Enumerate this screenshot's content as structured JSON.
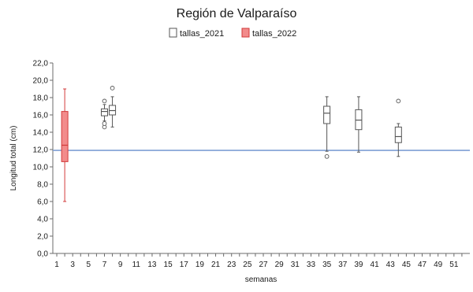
{
  "chart_data": {
    "type": "boxplot",
    "title": "Región de Valparaíso",
    "xlabel": "semanas",
    "ylabel": "Longitud total (cm)",
    "ylim": [
      0,
      22
    ],
    "xlim": [
      1,
      52
    ],
    "y_ticks": [
      "0,0",
      "2,0",
      "4,0",
      "6,0",
      "8,0",
      "10,0",
      "12,0",
      "14,0",
      "16,0",
      "18,0",
      "20,0",
      "22,0"
    ],
    "x_ticks": [
      "1",
      "3",
      "5",
      "7",
      "9",
      "11",
      "13",
      "15",
      "17",
      "19",
      "21",
      "23",
      "25",
      "27",
      "29",
      "31",
      "33",
      "35",
      "37",
      "39",
      "41",
      "43",
      "45",
      "47",
      "49",
      "51"
    ],
    "reference_line": {
      "y": 11.9,
      "color": "#7f9fd4"
    },
    "legend_position": "top-center",
    "series": [
      {
        "name": "tallas_2021",
        "color": "#ffffff",
        "stroke": "#555555",
        "boxes": [
          {
            "week": 7,
            "min": 15.3,
            "q1": 15.9,
            "median": 16.4,
            "q3": 16.7,
            "max": 17.2,
            "outliers": [
              14.6,
              15.0,
              17.6
            ]
          },
          {
            "week": 8,
            "min": 14.6,
            "q1": 16.0,
            "median": 16.5,
            "q3": 17.1,
            "max": 18.1,
            "outliers": [
              19.1
            ]
          },
          {
            "week": 35,
            "min": 11.8,
            "q1": 15.0,
            "median": 16.2,
            "q3": 17.0,
            "max": 18.1,
            "outliers": [
              11.2
            ]
          },
          {
            "week": 39,
            "min": 11.7,
            "q1": 14.3,
            "median": 15.4,
            "q3": 16.6,
            "max": 18.1,
            "outliers": []
          },
          {
            "week": 44,
            "min": 11.2,
            "q1": 12.8,
            "median": 13.5,
            "q3": 14.6,
            "max": 15.0,
            "outliers": [
              17.6
            ]
          }
        ]
      },
      {
        "name": "tallas_2022",
        "color": "#f28b8b",
        "stroke": "#d23a3a",
        "boxes": [
          {
            "week": 2,
            "min": 6.0,
            "q1": 10.6,
            "median": 12.5,
            "q3": 16.4,
            "max": 19.0,
            "outliers": []
          }
        ]
      }
    ]
  }
}
